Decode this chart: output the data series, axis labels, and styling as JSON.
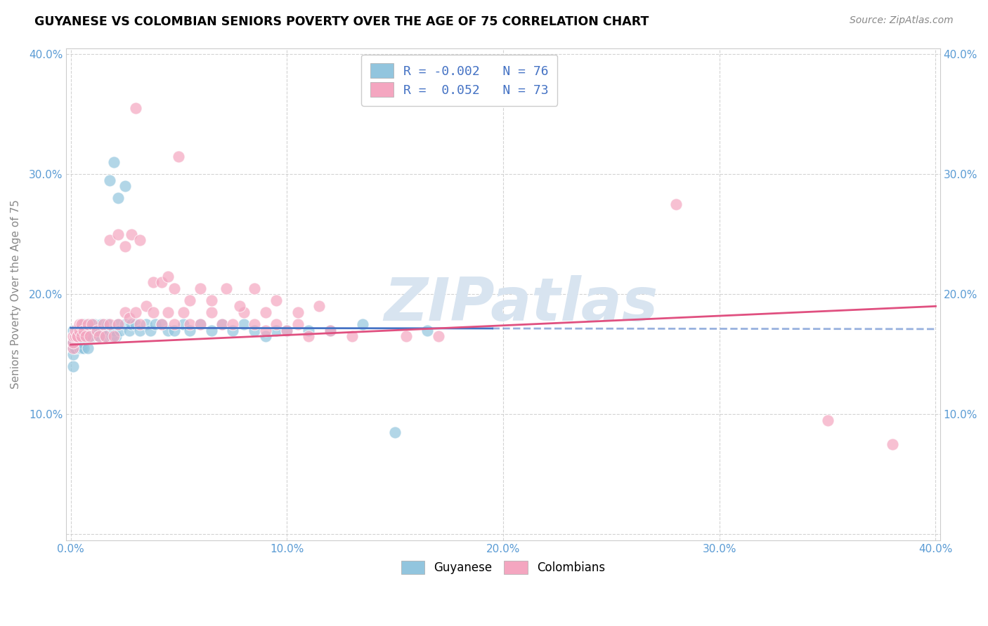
{
  "title": "GUYANESE VS COLOMBIAN SENIORS POVERTY OVER THE AGE OF 75 CORRELATION CHART",
  "source": "Source: ZipAtlas.com",
  "ylabel": "Seniors Poverty Over the Age of 75",
  "xlim": [
    -0.002,
    0.402
  ],
  "ylim": [
    -0.005,
    0.405
  ],
  "xticks": [
    0.0,
    0.1,
    0.2,
    0.3,
    0.4
  ],
  "yticks": [
    0.0,
    0.1,
    0.2,
    0.3,
    0.4
  ],
  "xticklabels": [
    "0.0%",
    "10.0%",
    "20.0%",
    "30.0%",
    "40.0%"
  ],
  "yticklabels_left": [
    "",
    "10.0%",
    "20.0%",
    "30.0%",
    "40.0%"
  ],
  "yticklabels_right": [
    "",
    "10.0%",
    "20.0%",
    "30.0%",
    "40.0%"
  ],
  "legend_blue_R": "-0.002",
  "legend_blue_N": "76",
  "legend_pink_R": "0.052",
  "legend_pink_N": "73",
  "blue_color": "#92c5de",
  "pink_color": "#f4a6c0",
  "line_blue": "#4472c4",
  "line_pink": "#e05080",
  "watermark_color": "#d8e4f0",
  "background_color": "#ffffff",
  "grid_color": "#c8c8c8",
  "blue_scatter_x": [
    0.001,
    0.001,
    0.001,
    0.001,
    0.001,
    0.001,
    0.001,
    0.002,
    0.002,
    0.002,
    0.003,
    0.003,
    0.003,
    0.003,
    0.004,
    0.004,
    0.004,
    0.005,
    0.005,
    0.005,
    0.005,
    0.005,
    0.006,
    0.006,
    0.007,
    0.007,
    0.008,
    0.008,
    0.009,
    0.009,
    0.01,
    0.01,
    0.011,
    0.012,
    0.013,
    0.014,
    0.015,
    0.016,
    0.017,
    0.018,
    0.019,
    0.02,
    0.021,
    0.022,
    0.023,
    0.025,
    0.027,
    0.028,
    0.03,
    0.032,
    0.035,
    0.037,
    0.039,
    0.042,
    0.045,
    0.048,
    0.052,
    0.055,
    0.06,
    0.065,
    0.07,
    0.075,
    0.08,
    0.085,
    0.09,
    0.095,
    0.1,
    0.11,
    0.12,
    0.135,
    0.15,
    0.165,
    0.018,
    0.02,
    0.022,
    0.025
  ],
  "blue_scatter_y": [
    0.16,
    0.155,
    0.14,
    0.16,
    0.15,
    0.17,
    0.16,
    0.165,
    0.155,
    0.16,
    0.165,
    0.17,
    0.16,
    0.165,
    0.155,
    0.17,
    0.16,
    0.165,
    0.155,
    0.165,
    0.17,
    0.16,
    0.155,
    0.175,
    0.165,
    0.17,
    0.155,
    0.165,
    0.17,
    0.175,
    0.17,
    0.165,
    0.175,
    0.17,
    0.165,
    0.175,
    0.17,
    0.165,
    0.175,
    0.17,
    0.165,
    0.17,
    0.165,
    0.175,
    0.17,
    0.175,
    0.17,
    0.175,
    0.175,
    0.17,
    0.175,
    0.17,
    0.175,
    0.175,
    0.17,
    0.17,
    0.175,
    0.17,
    0.175,
    0.17,
    0.175,
    0.17,
    0.175,
    0.17,
    0.165,
    0.17,
    0.17,
    0.17,
    0.17,
    0.175,
    0.085,
    0.17,
    0.295,
    0.31,
    0.28,
    0.29
  ],
  "pink_scatter_x": [
    0.001,
    0.001,
    0.001,
    0.002,
    0.002,
    0.003,
    0.003,
    0.004,
    0.004,
    0.005,
    0.005,
    0.006,
    0.007,
    0.008,
    0.009,
    0.01,
    0.012,
    0.013,
    0.015,
    0.016,
    0.018,
    0.02,
    0.022,
    0.025,
    0.027,
    0.03,
    0.032,
    0.035,
    0.038,
    0.042,
    0.045,
    0.048,
    0.052,
    0.055,
    0.06,
    0.065,
    0.07,
    0.075,
    0.08,
    0.085,
    0.09,
    0.095,
    0.1,
    0.105,
    0.11,
    0.12,
    0.13,
    0.155,
    0.17,
    0.018,
    0.022,
    0.025,
    0.028,
    0.032,
    0.038,
    0.042,
    0.045,
    0.048,
    0.055,
    0.06,
    0.065,
    0.072,
    0.078,
    0.085,
    0.09,
    0.095,
    0.105,
    0.115,
    0.28,
    0.35,
    0.38,
    0.03,
    0.05
  ],
  "pink_scatter_y": [
    0.155,
    0.16,
    0.165,
    0.165,
    0.17,
    0.165,
    0.165,
    0.17,
    0.175,
    0.165,
    0.175,
    0.17,
    0.165,
    0.175,
    0.165,
    0.175,
    0.17,
    0.165,
    0.175,
    0.165,
    0.175,
    0.165,
    0.175,
    0.185,
    0.18,
    0.185,
    0.175,
    0.19,
    0.185,
    0.175,
    0.185,
    0.175,
    0.185,
    0.175,
    0.175,
    0.185,
    0.175,
    0.175,
    0.185,
    0.175,
    0.17,
    0.175,
    0.17,
    0.175,
    0.165,
    0.17,
    0.165,
    0.165,
    0.165,
    0.245,
    0.25,
    0.24,
    0.25,
    0.245,
    0.21,
    0.21,
    0.215,
    0.205,
    0.195,
    0.205,
    0.195,
    0.205,
    0.19,
    0.205,
    0.185,
    0.195,
    0.185,
    0.19,
    0.275,
    0.095,
    0.075,
    0.355,
    0.315
  ]
}
